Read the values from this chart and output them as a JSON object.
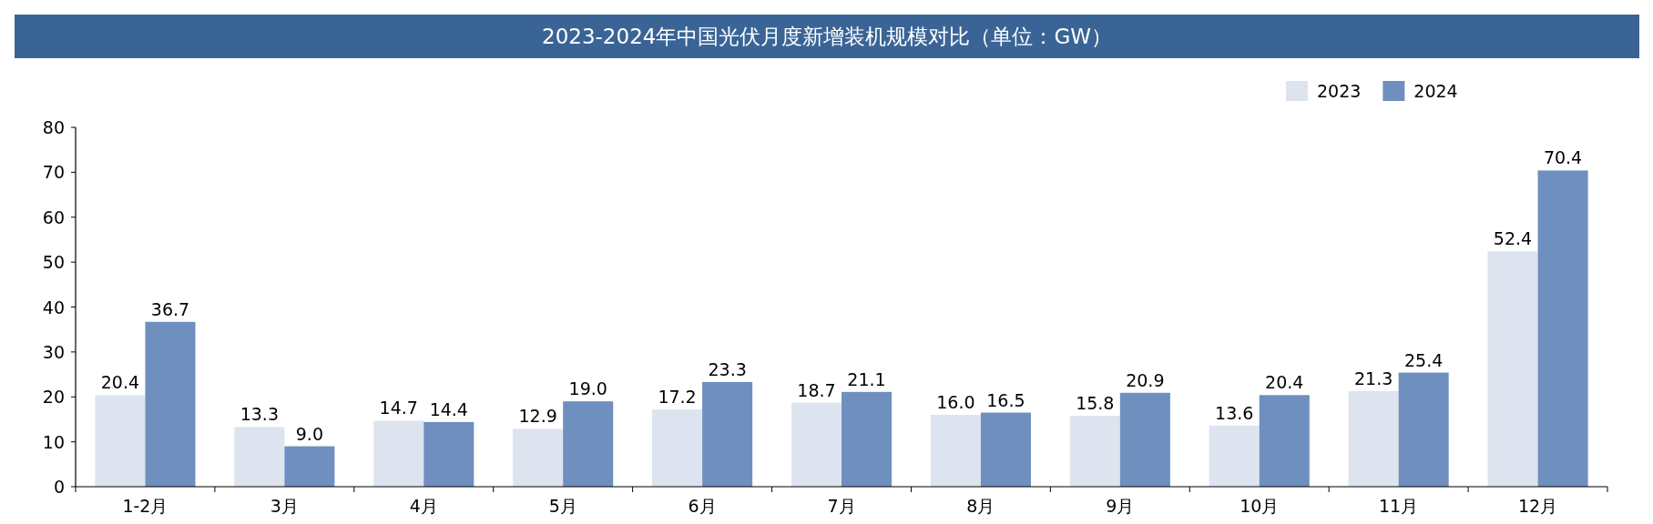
{
  "chart_data": {
    "type": "bar",
    "title": "2023-2024年中国光伏月度新增装机规模对比（单位：GW）",
    "categories": [
      "1-2月",
      "3月",
      "4月",
      "5月",
      "6月",
      "7月",
      "8月",
      "9月",
      "10月",
      "11月",
      "12月"
    ],
    "series": [
      {
        "name": "2023",
        "color": "#dee4ef",
        "values": [
          20.4,
          13.3,
          14.7,
          12.9,
          17.2,
          18.7,
          16.0,
          15.8,
          13.6,
          21.3,
          52.4
        ],
        "value_labels": [
          "20.4",
          "13.3",
          "14.7",
          "12.9",
          "17.2",
          "18.7",
          "16.0",
          "15.8",
          "13.6",
          "21.3",
          "52.4"
        ]
      },
      {
        "name": "2024",
        "color": "#6f8fbe",
        "values": [
          36.7,
          9.0,
          14.4,
          19.0,
          23.3,
          21.1,
          16.5,
          20.9,
          20.4,
          25.4,
          70.4
        ],
        "value_labels": [
          "36.7",
          "9.0",
          "14.4",
          "19.0",
          "23.3",
          "21.1",
          "16.5",
          "20.9",
          "20.4",
          "25.4",
          "70.4"
        ]
      }
    ],
    "ylim": [
      0,
      80
    ],
    "yticks": [
      0,
      10,
      20,
      30,
      40,
      50,
      60,
      70,
      80
    ],
    "legend": "top right",
    "grid": false
  }
}
